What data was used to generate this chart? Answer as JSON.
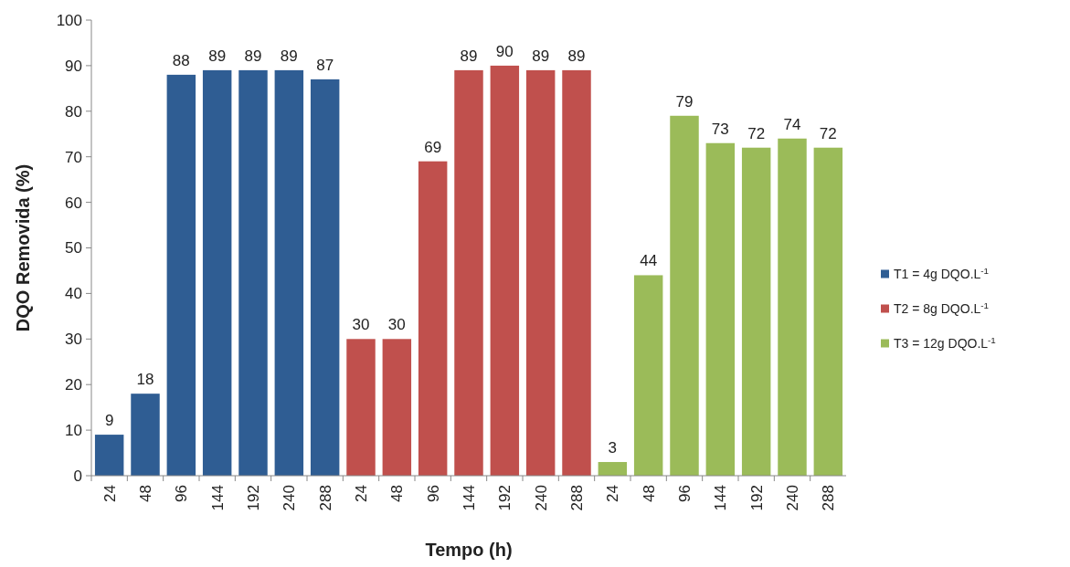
{
  "chart_data": {
    "type": "bar",
    "xlabel": "Tempo (h)",
    "ylabel": "DQO Removida (%)",
    "categories": [
      "24",
      "48",
      "96",
      "144",
      "192",
      "240",
      "288",
      "24",
      "48",
      "96",
      "144",
      "192",
      "240",
      "288",
      "24",
      "48",
      "96",
      "144",
      "192",
      "240",
      "288"
    ],
    "series": [
      {
        "name": "T1 = 4g DQO.L$^{-1}$",
        "color": "#2f5d93",
        "values": [
          9,
          18,
          88,
          89,
          89,
          89,
          87,
          null,
          null,
          null,
          null,
          null,
          null,
          null,
          null,
          null,
          null,
          null,
          null,
          null,
          null
        ]
      },
      {
        "name": "T2 = 8g DQO.L$^{-1}$",
        "color": "#c0504d",
        "values": [
          null,
          null,
          null,
          null,
          null,
          null,
          null,
          30,
          30,
          69,
          89,
          90,
          89,
          89,
          null,
          null,
          null,
          null,
          null,
          null,
          null
        ]
      },
      {
        "name": "T3 = 12g DQO.L$^{-1}$",
        "color": "#9bbb59",
        "values": [
          null,
          null,
          null,
          null,
          null,
          null,
          null,
          null,
          null,
          null,
          null,
          null,
          null,
          null,
          3,
          44,
          79,
          73,
          72,
          74,
          72
        ]
      }
    ],
    "ylim": [
      0,
      100
    ],
    "yticks": [
      0,
      10,
      20,
      30,
      40,
      50,
      60,
      70,
      80,
      90,
      100
    ],
    "grid": false,
    "legend": "right",
    "data_labels": true
  }
}
